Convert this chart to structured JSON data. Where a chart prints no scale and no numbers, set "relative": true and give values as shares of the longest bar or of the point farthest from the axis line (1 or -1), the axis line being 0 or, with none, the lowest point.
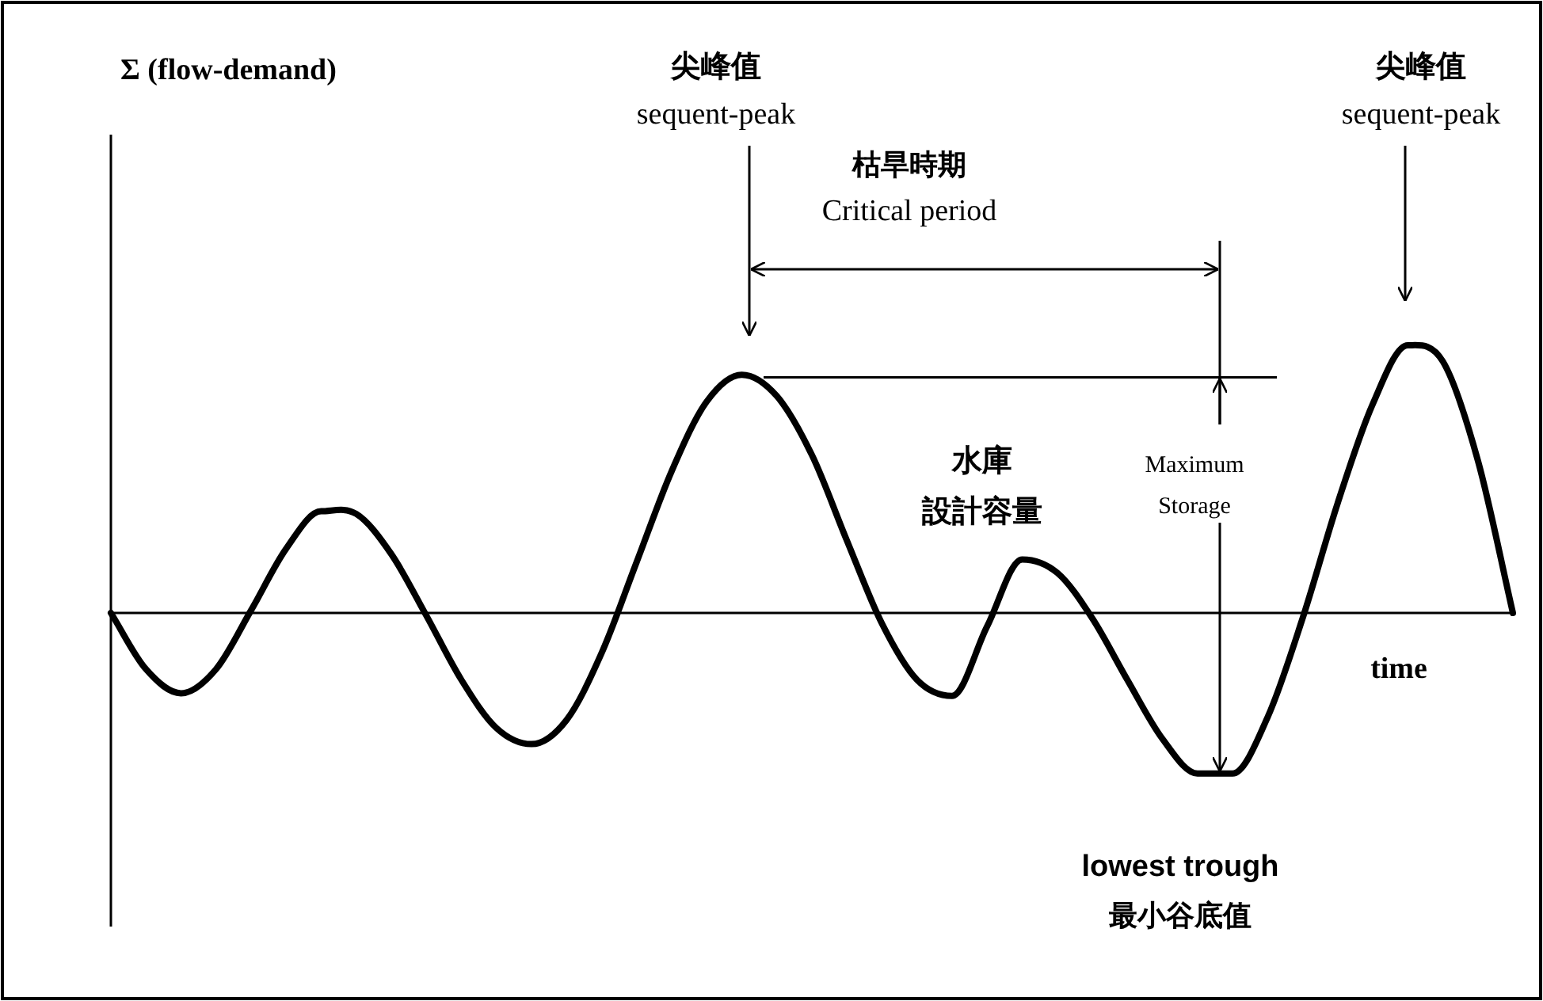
{
  "chart_data": {
    "type": "line",
    "relative": true,
    "categories": [
      null,
      null,
      null,
      null,
      null,
      null,
      null,
      null,
      null,
      null,
      null,
      null,
      null,
      null,
      null,
      null,
      null,
      null,
      null,
      null,
      null,
      null,
      null,
      null,
      null,
      null,
      null,
      null,
      null,
      null,
      null,
      null,
      null,
      null,
      null,
      null,
      null,
      null,
      null,
      null,
      null
    ],
    "series": [
      {
        "color": "#000000",
        "values": [
          0,
          -0.21,
          -0.3,
          -0.21,
          0.01,
          0.24,
          0.38,
          0.37,
          0.22,
          -0.01,
          -0.25,
          -0.43,
          -0.49,
          -0.4,
          -0.15,
          0.19,
          0.53,
          0.79,
          0.89,
          0.81,
          0.59,
          0.27,
          -0.04,
          -0.25,
          -0.31,
          -0.05,
          0.2,
          0.15,
          -0.02,
          -0.25,
          -0.47,
          -0.6,
          -0.6,
          -0.39,
          -0.02,
          0.41,
          0.78,
          1.0,
          0.94,
          0.57,
          0
        ]
      }
    ],
    "xlabel": "time",
    "ref_lines": [
      {
        "axis": "y",
        "value": 0.88,
        "color": "#000000"
      }
    ],
    "annotations": [
      "尖峰值",
      "sequent-peak",
      "枯旱時期",
      "Critical period",
      "尖峰值",
      "sequent-peak",
      "水庫",
      "設計容量",
      "Maximum",
      "Storage",
      "lowest trough",
      "最小谷底值",
      "Σ (flow-demand)"
    ]
  }
}
